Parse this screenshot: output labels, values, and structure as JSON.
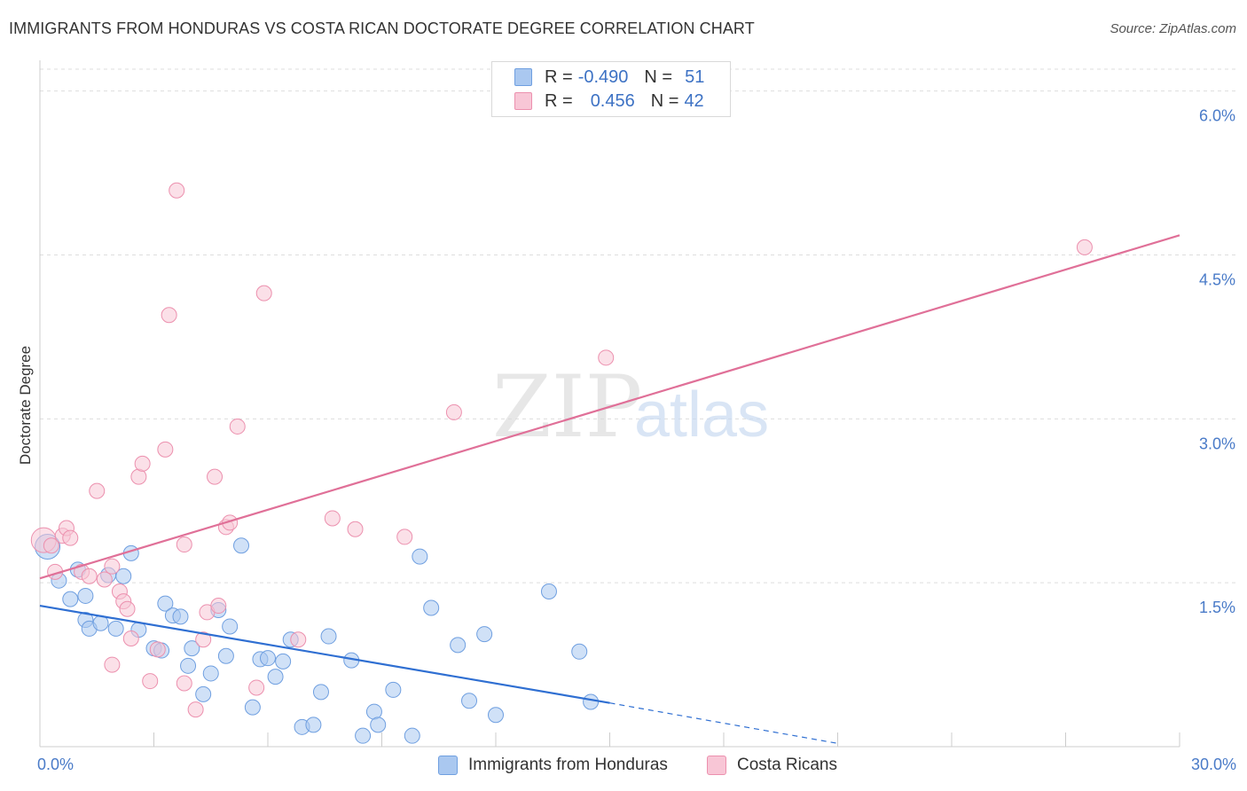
{
  "title": "IMMIGRANTS FROM HONDURAS VS COSTA RICAN DOCTORATE DEGREE CORRELATION CHART",
  "source": "Source: ZipAtlas.com",
  "watermark": {
    "zip": "ZIP",
    "atlas": "atlas"
  },
  "legend": {
    "rows": [
      {
        "r_label": "R =",
        "r_value": "-0.490",
        "n_label": "N =",
        "n_value": "51",
        "color": "#aac8f0",
        "border": "#6f9fe0"
      },
      {
        "r_label": "R =",
        "r_value": "0.456",
        "n_label": "N =",
        "n_value": "42",
        "color": "#f8c6d6",
        "border": "#ec90ae"
      }
    ]
  },
  "bottom_legend": [
    {
      "label": "Immigrants from Honduras",
      "color": "#aac8f0",
      "border": "#6f9fe0"
    },
    {
      "label": "Costa Ricans",
      "color": "#f8c6d6",
      "border": "#ec90ae"
    }
  ],
  "chart_data": {
    "type": "scatter",
    "title": "IMMIGRANTS FROM HONDURAS VS COSTA RICAN DOCTORATE DEGREE CORRELATION CHART",
    "xlabel": "",
    "ylabel": "Doctorate Degree",
    "xlim": [
      0,
      30
    ],
    "ylim": [
      0,
      6.2
    ],
    "x_tick_labels": [
      {
        "value": 0,
        "label": "0.0%"
      },
      {
        "value": 30,
        "label": "30.0%"
      }
    ],
    "y_tick_labels": [
      {
        "value": 1.5,
        "label": "1.5%"
      },
      {
        "value": 3.0,
        "label": "3.0%"
      },
      {
        "value": 4.5,
        "label": "4.5%"
      },
      {
        "value": 6.0,
        "label": "6.0%"
      }
    ],
    "x_minor_ticks": [
      0,
      3,
      6,
      9,
      12,
      15,
      18,
      21,
      24,
      27,
      30
    ],
    "grid": true,
    "series": [
      {
        "name": "Immigrants from Honduras",
        "color": "#6f9fe0",
        "fill": "#aac8f0",
        "points": [
          [
            0.2,
            1.83
          ],
          [
            0.5,
            1.52
          ],
          [
            0.8,
            1.35
          ],
          [
            1.0,
            1.62
          ],
          [
            1.2,
            1.38
          ],
          [
            1.2,
            1.16
          ],
          [
            1.3,
            1.08
          ],
          [
            1.6,
            1.13
          ],
          [
            1.8,
            1.57
          ],
          [
            2.0,
            1.08
          ],
          [
            2.2,
            1.56
          ],
          [
            2.4,
            1.77
          ],
          [
            2.6,
            1.07
          ],
          [
            3.0,
            0.9
          ],
          [
            3.2,
            0.88
          ],
          [
            3.3,
            1.31
          ],
          [
            3.5,
            1.2
          ],
          [
            3.7,
            1.19
          ],
          [
            3.9,
            0.74
          ],
          [
            4.0,
            0.9
          ],
          [
            4.3,
            0.48
          ],
          [
            4.5,
            0.67
          ],
          [
            4.7,
            1.25
          ],
          [
            4.9,
            0.83
          ],
          [
            5.0,
            1.1
          ],
          [
            5.3,
            1.84
          ],
          [
            5.6,
            0.36
          ],
          [
            5.8,
            0.8
          ],
          [
            6.0,
            0.81
          ],
          [
            6.2,
            0.64
          ],
          [
            6.4,
            0.78
          ],
          [
            6.6,
            0.98
          ],
          [
            6.9,
            0.18
          ],
          [
            7.2,
            0.2
          ],
          [
            7.4,
            0.5
          ],
          [
            7.6,
            1.01
          ],
          [
            8.2,
            0.79
          ],
          [
            8.5,
            0.1
          ],
          [
            8.8,
            0.32
          ],
          [
            8.9,
            0.2
          ],
          [
            9.3,
            0.52
          ],
          [
            9.8,
            0.1
          ],
          [
            10.0,
            1.74
          ],
          [
            10.3,
            1.27
          ],
          [
            11.0,
            0.93
          ],
          [
            11.3,
            0.42
          ],
          [
            11.7,
            1.03
          ],
          [
            12.0,
            0.29
          ],
          [
            13.4,
            1.42
          ],
          [
            14.2,
            0.87
          ],
          [
            14.5,
            0.41
          ]
        ]
      },
      {
        "name": "Costa Ricans",
        "color": "#ec90ae",
        "fill": "#f8c6d6",
        "points": [
          [
            0.1,
            1.89
          ],
          [
            0.3,
            1.84
          ],
          [
            0.4,
            1.6
          ],
          [
            0.6,
            1.93
          ],
          [
            0.7,
            2.0
          ],
          [
            0.8,
            1.91
          ],
          [
            1.1,
            1.6
          ],
          [
            1.3,
            1.56
          ],
          [
            1.5,
            2.34
          ],
          [
            1.7,
            1.53
          ],
          [
            1.9,
            1.65
          ],
          [
            1.9,
            0.75
          ],
          [
            2.1,
            1.42
          ],
          [
            2.2,
            1.33
          ],
          [
            2.3,
            1.26
          ],
          [
            2.4,
            0.99
          ],
          [
            2.6,
            2.47
          ],
          [
            2.7,
            2.59
          ],
          [
            2.9,
            0.6
          ],
          [
            3.1,
            0.89
          ],
          [
            3.3,
            2.72
          ],
          [
            3.4,
            3.95
          ],
          [
            3.6,
            5.09
          ],
          [
            3.8,
            1.85
          ],
          [
            3.8,
            0.58
          ],
          [
            4.1,
            0.34
          ],
          [
            4.3,
            0.98
          ],
          [
            4.4,
            1.23
          ],
          [
            4.6,
            2.47
          ],
          [
            4.7,
            1.29
          ],
          [
            4.9,
            2.01
          ],
          [
            5.0,
            2.05
          ],
          [
            5.2,
            2.93
          ],
          [
            5.7,
            0.54
          ],
          [
            5.9,
            4.15
          ],
          [
            6.8,
            0.98
          ],
          [
            7.7,
            2.09
          ],
          [
            8.3,
            1.99
          ],
          [
            9.6,
            1.92
          ],
          [
            10.9,
            3.06
          ],
          [
            14.9,
            3.56
          ],
          [
            27.5,
            4.57
          ]
        ]
      }
    ],
    "trend_lines": [
      {
        "series": "Immigrants from Honduras",
        "color": "#2f6fd2",
        "from": [
          0,
          1.29
        ],
        "to": [
          15.0,
          0.4
        ],
        "dashed_to": [
          21.0,
          0.03
        ]
      },
      {
        "series": "Costa Ricans",
        "color": "#e07098",
        "from": [
          0,
          1.54
        ],
        "to": [
          30.0,
          4.68
        ]
      }
    ]
  }
}
